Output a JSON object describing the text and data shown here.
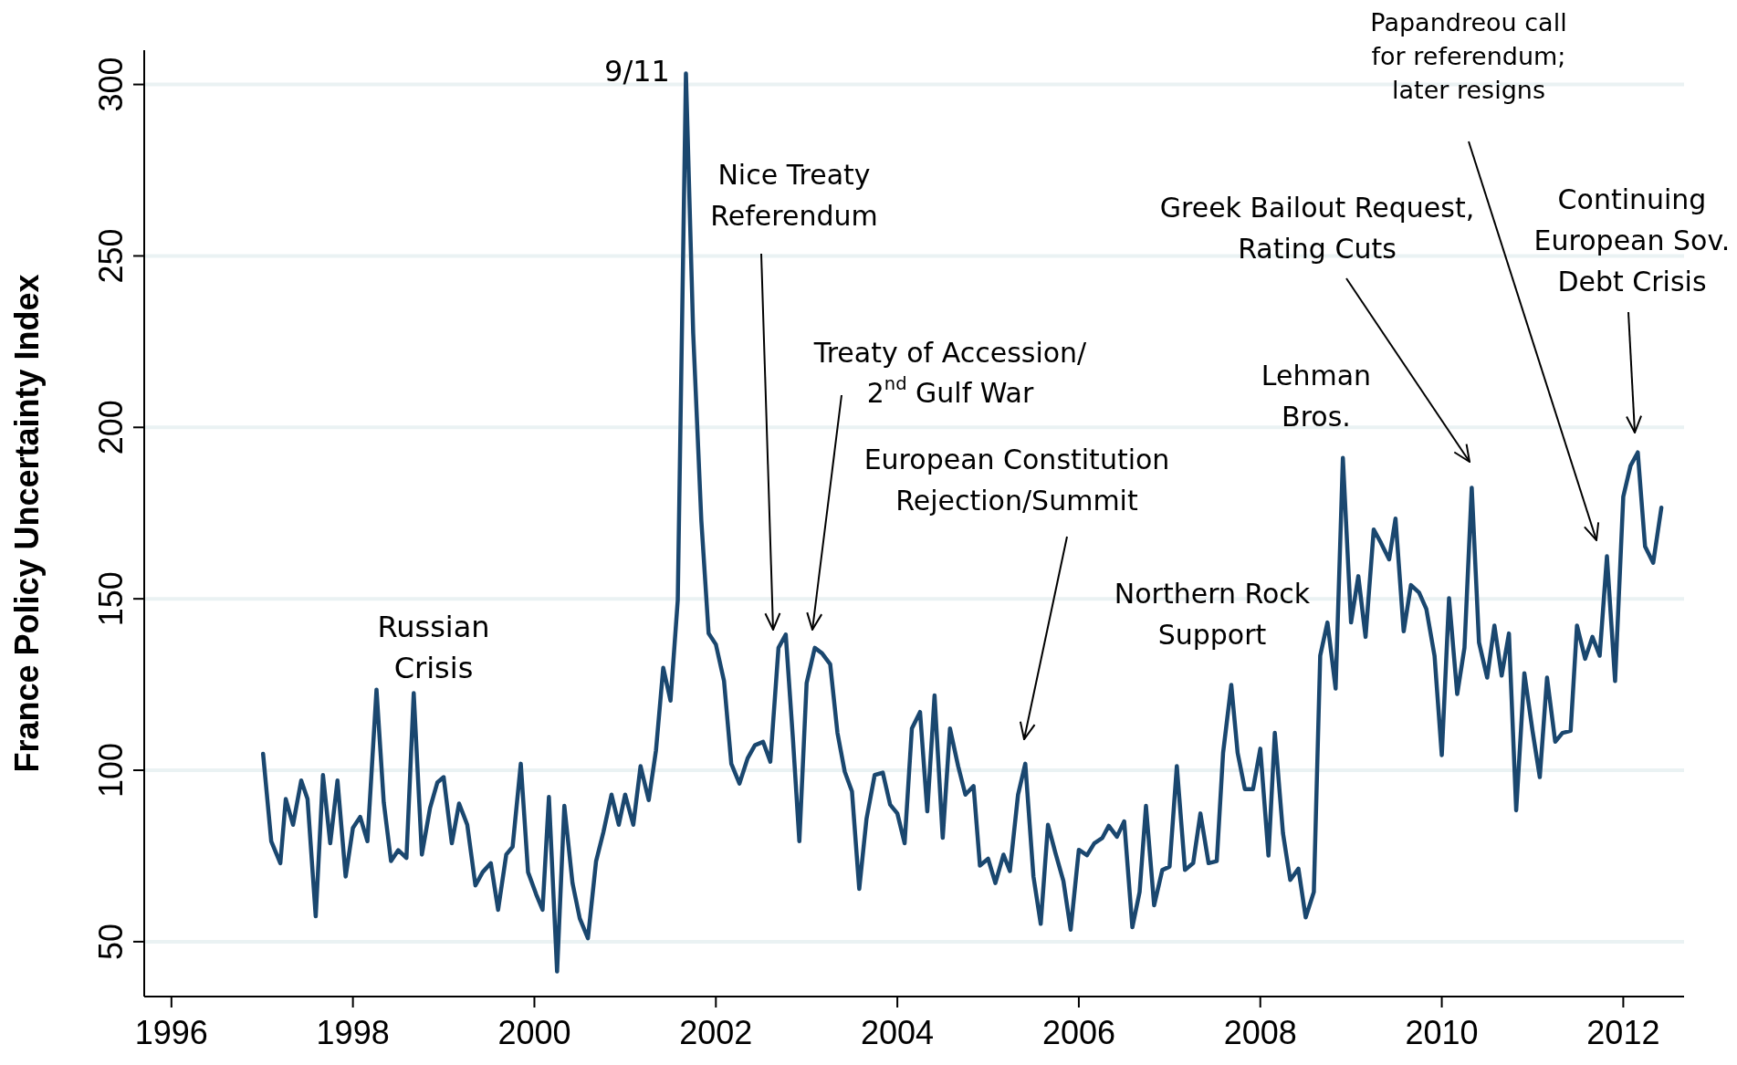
{
  "chart_data": {
    "type": "line",
    "ylabel": "France Policy Uncertainty Index",
    "xlim": [
      1995.7,
      2012.67
    ],
    "xticks": [
      1996,
      1998,
      2000,
      2002,
      2004,
      2006,
      2008,
      2010,
      2012
    ],
    "ylim": [
      34,
      310
    ],
    "yticks": [
      50,
      100,
      150,
      200,
      250,
      300
    ],
    "grid": "y",
    "series": [
      {
        "color": "#1a476f",
        "x": [
          1997.01,
          1997.1,
          1997.2,
          1997.26,
          1997.34,
          1997.43,
          1997.5,
          1997.59,
          1997.67,
          1997.75,
          1997.83,
          1997.92,
          1998.0,
          1998.08,
          1998.16,
          1998.26,
          1998.34,
          1998.42,
          1998.5,
          1998.59,
          1998.67,
          1998.76,
          1998.85,
          1998.93,
          1999.0,
          1999.09,
          1999.17,
          1999.26,
          1999.35,
          1999.43,
          1999.52,
          1999.6,
          1999.69,
          1999.76,
          1999.85,
          1999.93,
          2000.02,
          2000.09,
          2000.16,
          2000.25,
          2000.33,
          2000.42,
          2000.5,
          2000.59,
          2000.68,
          2000.76,
          2000.85,
          2000.93,
          2001.0,
          2001.09,
          2001.17,
          2001.26,
          2001.34,
          2001.42,
          2001.5,
          2001.58,
          2001.67,
          2001.75,
          2001.84,
          2001.92,
          2002.0,
          2002.09,
          2002.17,
          2002.26,
          2002.35,
          2002.43,
          2002.52,
          2002.6,
          2002.69,
          2002.77,
          2002.85,
          2002.92,
          2003.0,
          2003.09,
          2003.17,
          2003.26,
          2003.34,
          2003.42,
          2003.5,
          2003.58,
          2003.66,
          2003.75,
          2003.84,
          2003.92,
          2004.0,
          2004.08,
          2004.16,
          2004.25,
          2004.33,
          2004.41,
          2004.5,
          2004.58,
          2004.67,
          2004.75,
          2004.84,
          2004.91,
          2005.0,
          2005.08,
          2005.17,
          2005.24,
          2005.33,
          2005.41,
          2005.5,
          2005.58,
          2005.66,
          2005.74,
          2005.83,
          2005.91,
          2006.0,
          2006.09,
          2006.17,
          2006.26,
          2006.33,
          2006.42,
          2006.5,
          2006.59,
          2006.67,
          2006.74,
          2006.83,
          2006.92,
          2007.0,
          2007.08,
          2007.17,
          2007.26,
          2007.34,
          2007.43,
          2007.52,
          2007.59,
          2007.68,
          2007.75,
          2007.83,
          2007.92,
          2008.0,
          2008.09,
          2008.16,
          2008.25,
          2008.33,
          2008.42,
          2008.5,
          2008.59,
          2008.66,
          2008.74,
          2008.83,
          2008.91,
          2009.0,
          2009.08,
          2009.16,
          2009.25,
          2009.33,
          2009.42,
          2009.49,
          2009.58,
          2009.66,
          2009.75,
          2009.83,
          2009.92,
          2010.0,
          2010.08,
          2010.17,
          2010.25,
          2010.33,
          2010.41,
          2010.5,
          2010.58,
          2010.66,
          2010.74,
          2010.82,
          2010.91,
          2011.0,
          2011.08,
          2011.16,
          2011.25,
          2011.33,
          2011.42,
          2011.49,
          2011.58,
          2011.66,
          2011.74,
          2011.82,
          2011.91,
          2012.0,
          2012.08,
          2012.16,
          2012.24,
          2012.33,
          2012.42
        ],
        "values": [
          104.8,
          79.3,
          72.9,
          91.6,
          84.1,
          97,
          91.6,
          57.4,
          98.6,
          78.7,
          97,
          69,
          83.2,
          86.4,
          79.3,
          123.5,
          90.6,
          73.5,
          76.7,
          74.4,
          122.5,
          75.4,
          89,
          96.4,
          98,
          78.7,
          90.3,
          84.1,
          66.4,
          70.3,
          72.9,
          59.3,
          75.4,
          77.7,
          101.9,
          70.3,
          63.8,
          59.3,
          92.2,
          41.3,
          89.6,
          67.1,
          56.8,
          51,
          73.5,
          81.9,
          92.9,
          84.1,
          92.9,
          84.1,
          101.2,
          91.3,
          105.8,
          129.9,
          120.3,
          149.6,
          303.2,
          227.5,
          172.7,
          139.9,
          136.7,
          126,
          101.9,
          96.1,
          103.5,
          107.3,
          108.3,
          102.5,
          135.7,
          139.6,
          108.9,
          79.3,
          125.4,
          135.7,
          134.1,
          130.9,
          110.9,
          99.6,
          93.8,
          65.4,
          85.8,
          98.6,
          99.3,
          90,
          87.4,
          78.7,
          112.2,
          117,
          88,
          121.8,
          80.3,
          112.2,
          101.2,
          92.9,
          95.4,
          72.2,
          74.2,
          67.1,
          75.4,
          70.6,
          92.9,
          101.9,
          69,
          55.2,
          84.1,
          76.1,
          67.7,
          53.5,
          76.8,
          75.2,
          78.7,
          80.3,
          83.8,
          80.6,
          85.1,
          54.2,
          64.5,
          89.6,
          60.6,
          70.9,
          71.9,
          101.2,
          70.9,
          72.9,
          87.4,
          72.9,
          73.5,
          105.1,
          124.9,
          105.1,
          94.5,
          94.5,
          106.3,
          75.1,
          110.9,
          81.6,
          68,
          71.3,
          57.1,
          64.5,
          133.4,
          143.1,
          123.8,
          191.1,
          143.1,
          156.6,
          138.9,
          170.2,
          166.3,
          161.5,
          173.4,
          140.5,
          154,
          151.8,
          147,
          133.4,
          104.4,
          150.2,
          122.2,
          135.7,
          182.4,
          137.3,
          127,
          142.2,
          127.6,
          139.9,
          88.3,
          128.3,
          111.5,
          98,
          127,
          108.3,
          110.9,
          111.5,
          142.2,
          132.5,
          138.9,
          133.4,
          162.4,
          126,
          179.8,
          188.8,
          192.7,
          165.3,
          160.5,
          176.6
        ]
      }
    ],
    "annotations": [
      "9/11",
      "Russian\nCrisis",
      "Nice Treaty\nReferendum",
      "Treaty of Accession/\n2$^{nd}$ Gulf War",
      "European Constitution\nRejection/Summit",
      "Northern Rock\nSupport",
      "Lehman\nBros.",
      "Greek Bailout Request,\nRating Cuts",
      "Papandreou call\nfor referendum;\nlater resigns",
      "Continuing\nEuropean Sov.\nDebt Crisis"
    ]
  }
}
